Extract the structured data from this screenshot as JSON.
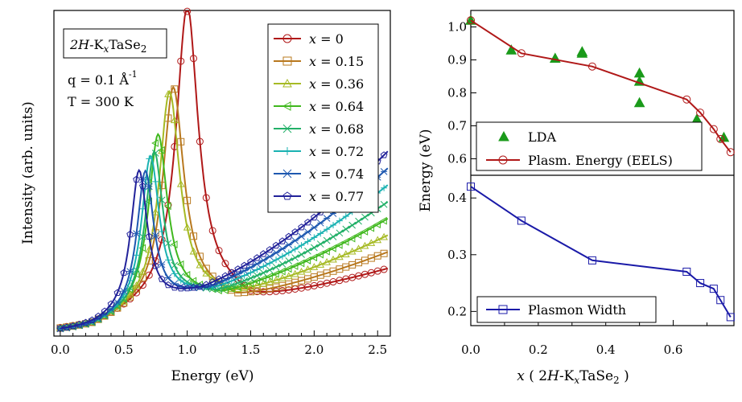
{
  "chart_data": [
    {
      "type": "line",
      "title": "",
      "xlabel": "Energy  (eV)",
      "ylabel": "Intensity  (arb. units)",
      "xlim": [
        -0.05,
        2.6
      ],
      "ylim": [
        0,
        1.0
      ],
      "xticks": [
        "0.0",
        "0.5",
        "1.0",
        "1.5",
        "2.0",
        "2.5"
      ],
      "xtick_values": [
        0,
        0.5,
        1.0,
        1.5,
        2.0,
        2.5
      ],
      "annotations": {
        "sample_box": "2H-KxTaSe2",
        "sample_prefix": "2H",
        "sample_mid": "-K",
        "sample_sub": "x",
        "sample_main": "TaSe",
        "sample_sub2": "2",
        "q_text": "q = 0.1 Å",
        "q_exp": "-1",
        "t_text": "T = 300 K"
      },
      "series": [
        {
          "name": "x = 0",
          "label_x": "x",
          "label_val": "= 0",
          "color": "#b01818",
          "marker": "circle",
          "peak": 1.0,
          "width": 0.105,
          "height": 1.0
        },
        {
          "name": "x = 0.15",
          "label_x": "x",
          "label_val": "= 0.15",
          "color": "#b8781e",
          "marker": "square",
          "peak": 0.89,
          "width": 0.1,
          "height": 0.76
        },
        {
          "name": "x = 0.36",
          "label_x": "x",
          "label_val": "= 0.36",
          "color": "#a6ba24",
          "marker": "triangle",
          "peak": 0.86,
          "width": 0.098,
          "height": 0.75
        },
        {
          "name": "x = 0.64",
          "label_x": "x",
          "label_val": "= 0.64",
          "color": "#40b81e",
          "marker": "ltriangle",
          "peak": 0.77,
          "width": 0.09,
          "height": 0.63
        },
        {
          "name": "x = 0.68",
          "label_x": "x",
          "label_val": "= 0.68",
          "color": "#22b068",
          "marker": "x",
          "peak": 0.74,
          "width": 0.085,
          "height": 0.58
        },
        {
          "name": "x = 0.72",
          "label_x": "x",
          "label_val": "= 0.72",
          "color": "#1ab2b2",
          "marker": "plus",
          "peak": 0.71,
          "width": 0.085,
          "height": 0.57
        },
        {
          "name": "x = 0.74",
          "label_x": "x",
          "label_val": "= 0.74",
          "color": "#1e58b0",
          "marker": "star",
          "peak": 0.67,
          "width": 0.08,
          "height": 0.53
        },
        {
          "name": "x = 0.77",
          "label_x": "x",
          "label_val": "= 0.77",
          "color": "#22229a",
          "marker": "pentagon",
          "peak": 0.62,
          "width": 0.08,
          "height": 0.54
        }
      ]
    },
    {
      "type": "line",
      "xlabel": "x ( 2H-KxTaSe2 )",
      "ylabel": "Energy (eV)",
      "xlim": [
        0,
        0.78
      ],
      "xticks": [
        "0.0",
        "0.2",
        "0.4",
        "0.6"
      ],
      "xtick_values": [
        0,
        0.2,
        0.4,
        0.6
      ],
      "top": {
        "ylim": [
          0.55,
          1.05
        ],
        "yticks": [
          "0.6",
          "0.7",
          "0.8",
          "0.9",
          "1.0"
        ],
        "ytick_values": [
          0.6,
          0.7,
          0.8,
          0.9,
          1.0
        ],
        "series": [
          {
            "name": "LDA",
            "color": "#1a9a1a",
            "marker": "filled-triangle",
            "x": [
              0.0,
              0.12,
              0.25,
              0.33,
              0.33,
              0.5,
              0.5,
              0.5,
              0.67,
              0.75
            ],
            "y": [
              1.02,
              0.93,
              0.905,
              0.92,
              0.925,
              0.86,
              0.835,
              0.77,
              0.72,
              0.665
            ]
          },
          {
            "name": "Plasm. Energy (EELS)",
            "color": "#b01818",
            "marker": "open-circle",
            "x": [
              0.0,
              0.15,
              0.36,
              0.64,
              0.68,
              0.72,
              0.74,
              0.77
            ],
            "y": [
              1.02,
              0.92,
              0.88,
              0.78,
              0.74,
              0.69,
              0.66,
              0.62
            ]
          }
        ]
      },
      "bottom": {
        "ylim": [
          0.175,
          0.44
        ],
        "yticks": [
          "0.2",
          "0.3",
          "0.4"
        ],
        "ytick_values": [
          0.2,
          0.3,
          0.4
        ],
        "series": [
          {
            "name": "Plasmon Width",
            "color": "#1a1aa8",
            "marker": "open-square",
            "x": [
              0.0,
              0.15,
              0.36,
              0.64,
              0.68,
              0.72,
              0.74,
              0.77
            ],
            "y": [
              0.42,
              0.36,
              0.29,
              0.27,
              0.25,
              0.24,
              0.22,
              0.19
            ]
          }
        ]
      },
      "xlabel_parts": {
        "x": "x",
        "open": " ( 2",
        "h": "H",
        "k": "-K",
        "sub": "x",
        "tase": "TaSe",
        "sub2": "2",
        "close": " )"
      }
    }
  ]
}
